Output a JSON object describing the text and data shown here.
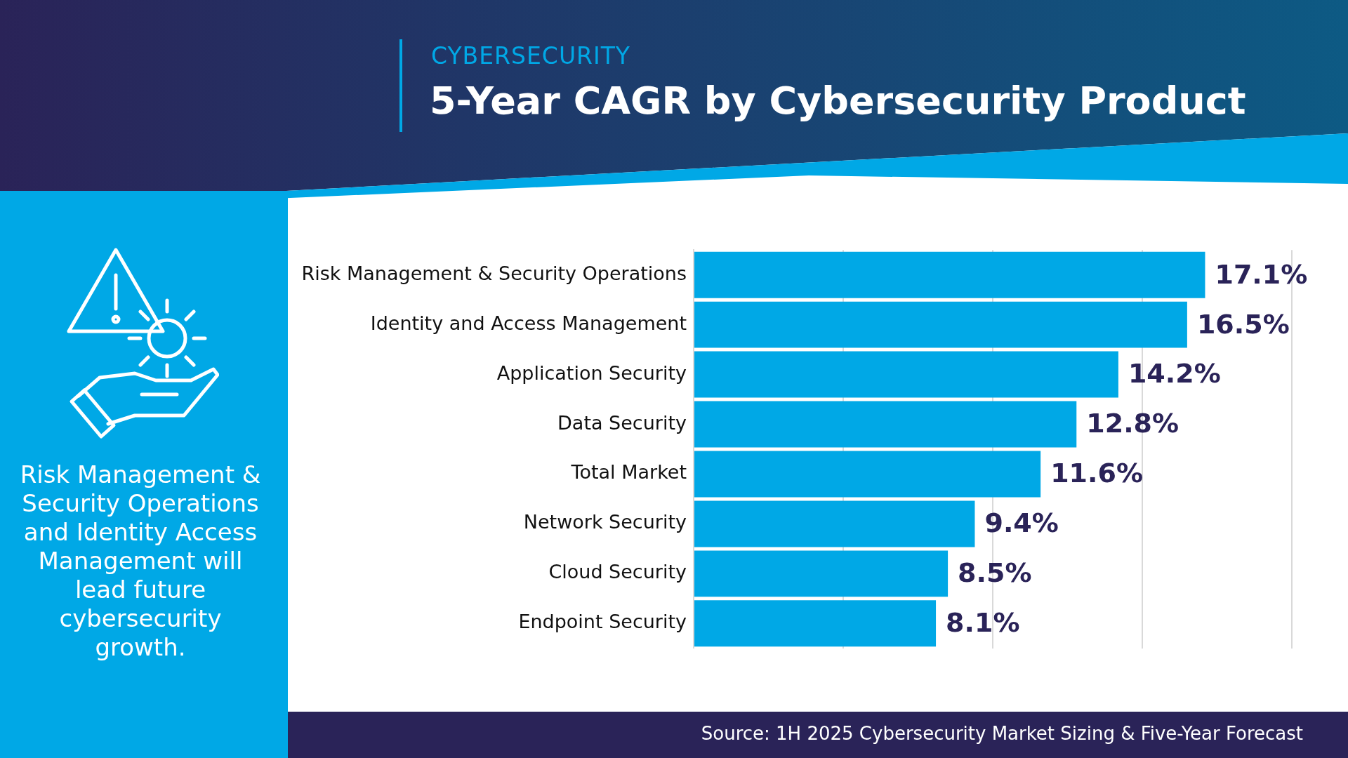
{
  "chart_data": {
    "type": "bar",
    "orientation": "horizontal",
    "subtitle": "CYBERSECURITY",
    "title": "5-Year CAGR by Cybersecurity Product",
    "categories": [
      "Risk Management & Security Operations",
      "Identity and Access Management",
      "Application Security",
      "Data Security",
      "Total Market",
      "Network Security",
      "Cloud Security",
      "Endpoint Security"
    ],
    "values": [
      17.1,
      16.5,
      14.2,
      12.8,
      11.6,
      9.4,
      8.5,
      8.1
    ],
    "value_labels": [
      "17.1%",
      "16.5%",
      "14.2%",
      "12.8%",
      "11.6%",
      "9.4%",
      "8.5%",
      "8.1%"
    ],
    "color": "#00a8e6",
    "xlim": [
      0,
      20
    ],
    "xticks": [
      {
        "value": 0,
        "label": null
      },
      {
        "value": 5,
        "label": null
      },
      {
        "value": 10,
        "label": null
      },
      {
        "value": 15,
        "label": null
      },
      {
        "value": 20,
        "label": null
      }
    ],
    "grid": "x",
    "tick_labels": "y",
    "legend": false,
    "annotations": [
      "Risk Management & Security Operations and Identity Access Management will lead future cybersecurity growth.",
      "Source: 1H 2025 Cybersecurity Market Sizing & Five-Year Forecast"
    ]
  }
}
